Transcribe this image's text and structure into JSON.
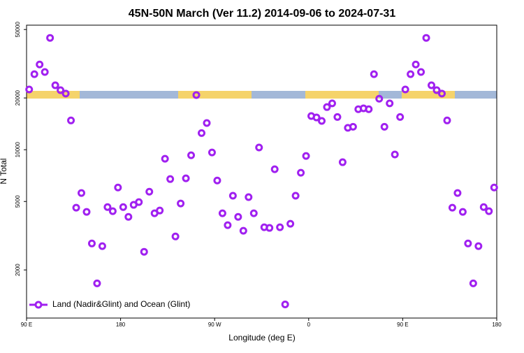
{
  "chart_data": {
    "type": "scatter",
    "title": "45N-50N March (Ver 11.2)   2014-09-06 to 2024-07-31",
    "x_label": "Longitude (deg E)",
    "y_label": "N Total",
    "log_y": true,
    "grid": false,
    "legend": "bottom-left",
    "xlim": [
      90,
      540
    ],
    "xticks": [
      {
        "value": 90,
        "label": "90 E"
      },
      180,
      {
        "value": 270,
        "label": "90 W"
      },
      {
        "value": 360,
        "label": "0"
      },
      {
        "value": 450,
        "label": "90 E"
      },
      {
        "value": 540,
        "label": "180"
      }
    ],
    "ylim": [
      1050,
      53000
    ],
    "yticks": [
      2000,
      5000,
      10000,
      20000,
      50000
    ],
    "x": [
      92.5,
      97.5,
      102.5,
      107.5,
      112.5,
      117.5,
      122.5,
      127.5,
      132.5,
      137.5,
      142.5,
      147.5,
      152.5,
      157.5,
      162.5,
      167.5,
      172.5,
      177.5,
      182.5,
      187.5,
      192.5,
      197.5,
      202.5,
      207.5,
      212.5,
      217.5,
      222.5,
      227.5,
      232.5,
      237.5,
      242.5,
      247.5,
      252.5,
      257.5,
      262.5,
      267.5,
      272.5,
      277.5,
      282.5,
      287.5,
      292.5,
      297.5,
      302.5,
      307.5,
      312.5,
      317.5,
      322.5,
      327.5,
      332.5,
      337.5,
      342.5,
      347.5,
      352.5,
      357.5,
      362.5,
      367.5,
      372.5,
      377.5,
      382.5,
      387.5,
      392.5,
      397.5,
      402.5,
      407.5,
      412.5,
      417.5,
      422.5,
      427.5,
      432.5,
      437.5,
      442.5,
      447.5,
      452.5,
      457.5,
      462.5,
      467.5,
      472.5,
      477.5,
      482.5,
      487.5,
      492.5,
      497.5,
      502.5,
      507.5,
      512.5,
      517.5,
      522.5,
      527.5,
      532.5,
      537.5
    ],
    "series": [
      {
        "name": "Land (Nadir&Glint) and Ocean (Glint)",
        "color": "#a020f0",
        "values": [
          22400,
          27500,
          31300,
          28300,
          44700,
          23700,
          22200,
          21200,
          14800,
          4600,
          5600,
          4350,
          2850,
          1670,
          2750,
          4640,
          4390,
          6030,
          4640,
          4070,
          4780,
          4960,
          2550,
          5700,
          4270,
          4430,
          8860,
          6750,
          3130,
          4870,
          6820,
          9280,
          20800,
          12500,
          14300,
          9640,
          6620,
          4270,
          3640,
          5400,
          4070,
          3380,
          5300,
          4270,
          10300,
          3540,
          3510,
          7700,
          3540,
          1260,
          3710,
          5400,
          7350,
          9200,
          15700,
          15400,
          14700,
          17700,
          18600,
          15500,
          8460,
          13400,
          13600,
          17200,
          17400,
          17200,
          27500,
          19800,
          13600,
          18600,
          9380,
          15500,
          22400,
          27500,
          31300,
          28300,
          44700,
          23700,
          22200,
          21200,
          14800,
          4600,
          5600,
          4350,
          2850,
          1670,
          2750,
          4640,
          4390,
          6030
        ]
      }
    ]
  }
}
